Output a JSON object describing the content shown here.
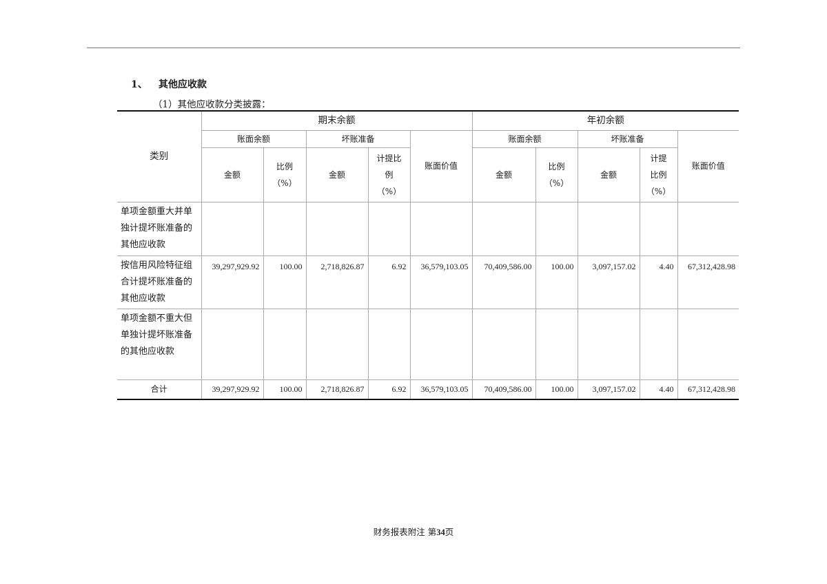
{
  "section": {
    "number": "1、",
    "title": "其他应收款"
  },
  "subtitle": "（1）其他应收款分类披露：",
  "table": {
    "category_header": "类别",
    "period_end": "期末余额",
    "period_begin": "年初余额",
    "book_balance": "账面余额",
    "bad_debt": "坏账准备",
    "book_value": "账面价值",
    "amount": "金额",
    "ratio": [
      "比例",
      "（%）"
    ],
    "provision_ratio_end": [
      "计提比",
      "例",
      "（%）"
    ],
    "provision_ratio_begin": [
      "计提",
      "比例",
      "（%）"
    ],
    "rows": [
      {
        "category": "单项金额重大并单独计提坏账准备的其他应收款",
        "values": [
          "",
          "",
          "",
          "",
          "",
          "",
          "",
          "",
          "",
          ""
        ]
      },
      {
        "category": "按信用风险特征组合计提坏账准备的其他应收款",
        "values": [
          "39,297,929.92",
          "100.00",
          "2,718,826.87",
          "6.92",
          "36,579,103.05",
          "70,409,586.00",
          "100.00",
          "3,097,157.02",
          "4.40",
          "67,312,428.98"
        ]
      },
      {
        "category": "单项金额不重大但单独计提坏账准备的其他应收款",
        "values": [
          "",
          "",
          "",
          "",
          "",
          "",
          "",
          "",
          "",
          ""
        ]
      }
    ],
    "total": {
      "category": "合计",
      "values": [
        "39,297,929.92",
        "100.00",
        "2,718,826.87",
        "6.92",
        "36,579,103.05",
        "70,409,586.00",
        "100.00",
        "3,097,157.02",
        "4.40",
        "67,312,428.98"
      ]
    }
  },
  "footer": {
    "text": "财务报表附注",
    "page_prefix": "第",
    "page_number": "34",
    "page_suffix": "页"
  }
}
